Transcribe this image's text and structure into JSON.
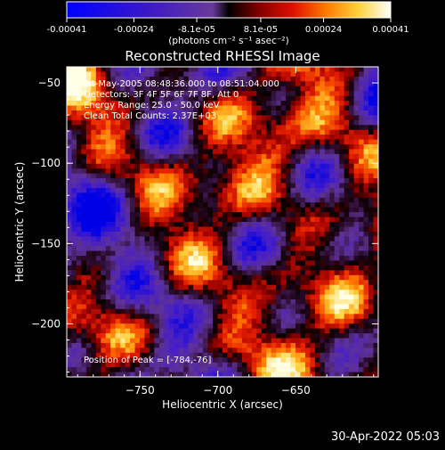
{
  "colorbar": {
    "ticks": [
      "-0.00041",
      "-0.00024",
      "-8.1e-05",
      "8.1e-05",
      "0.00024",
      "0.00041"
    ],
    "tick_values": [
      -0.00041,
      -0.00024,
      -8.1e-05,
      8.1e-05,
      0.00024,
      0.00041
    ],
    "range": [
      -0.00041,
      0.00041
    ],
    "units": "(photons cm⁻² s⁻¹ asec⁻²)"
  },
  "chart_data": {
    "type": "heatmap",
    "title": "Reconstructed RHESSI Image",
    "xlabel": "Heliocentric X (arcsec)",
    "ylabel": "Heliocentric Y (arcsec)",
    "xlim": [
      -797,
      -597
    ],
    "ylim": [
      -233,
      -40
    ],
    "xticks": [
      -750,
      -700,
      -650
    ],
    "xtick_labels": [
      "−750",
      "−700",
      "−650"
    ],
    "yticks": [
      -50,
      -100,
      -150,
      -200
    ],
    "ytick_labels": [
      "−50",
      "−100",
      "−150",
      "−200"
    ],
    "annotations": [
      "24-May-2005 08:48:36.000 to 08:51:04.000",
      "Detectors: 3F 4F 5F 6F 7F 8F, Att 0",
      "Energy Range: 25.0 - 50.0 keV",
      "Clean    Total Counts: 2.37E+03"
    ],
    "peak_text": "Position of Peak = [-784,-76]",
    "peak": [
      -784,
      -76
    ]
  },
  "timestamp": "30-Apr-2022 05:03"
}
